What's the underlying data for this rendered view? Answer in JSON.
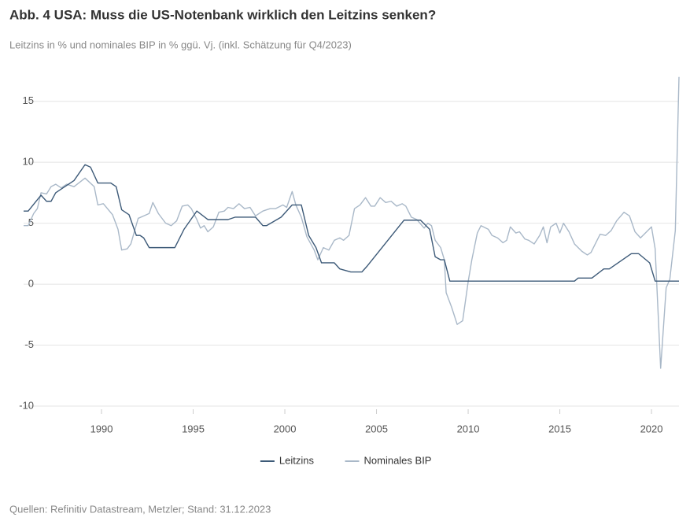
{
  "chart_data": {
    "type": "line",
    "title": "Abb. 4 USA: Muss die US-Notenbank wirklich den Leitzins senken?",
    "subtitle": "Leitzins in % und nominales BIP in % ggü. Vj. (inkl. Schätzung für Q4/2023)",
    "source": "Quellen: Refinitiv Datastream, Metzler; Stand: 31.12.2023",
    "xlim": [
      1985.75,
      2021.5
    ],
    "xticks": [
      1990,
      1995,
      2000,
      2005,
      2010,
      2015,
      2020
    ],
    "ylim": [
      -10,
      17.5
    ],
    "yticks": [
      -10,
      -5,
      0,
      5,
      10,
      15
    ],
    "grid": true,
    "legend": "bottom",
    "series": [
      {
        "name": "Leitzins",
        "color": "#3d5a78",
        "x": [
          1985.75,
          1986.0,
          1986.7,
          1987.0,
          1987.25,
          1987.5,
          1987.9,
          1988.5,
          1989.1,
          1989.4,
          1989.8,
          1990.5,
          1990.8,
          1991.1,
          1991.5,
          1991.9,
          1992.1,
          1992.3,
          1992.6,
          1994.0,
          1994.5,
          1995.2,
          1995.8,
          1996.9,
          1997.3,
          1998.4,
          1998.8,
          1999.0,
          1999.8,
          2000.4,
          2000.9,
          2001.3,
          2001.7,
          2002.0,
          2002.7,
          2003.0,
          2003.6,
          2004.2,
          2004.5,
          2006.5,
          2007.4,
          2007.9,
          2008.2,
          2008.5,
          2008.7,
          2009.0,
          2015.8,
          2016.0,
          2016.75,
          2017.4,
          2017.7,
          2018.9,
          2019.3,
          2019.9,
          2020.2,
          2021.5
        ],
        "values": [
          6.0,
          6.0,
          7.3,
          6.8,
          6.8,
          7.5,
          7.9,
          8.5,
          9.8,
          9.6,
          8.3,
          8.3,
          8.0,
          6.1,
          5.7,
          4.0,
          4.0,
          3.8,
          3.0,
          3.0,
          4.5,
          6.0,
          5.3,
          5.3,
          5.5,
          5.5,
          4.8,
          4.8,
          5.5,
          6.5,
          6.5,
          4.0,
          3.0,
          1.75,
          1.75,
          1.25,
          1.0,
          1.0,
          1.5,
          5.25,
          5.25,
          4.5,
          2.25,
          2.0,
          2.0,
          0.25,
          0.25,
          0.5,
          0.5,
          1.25,
          1.25,
          2.5,
          2.5,
          1.75,
          0.25,
          0.25
        ]
      },
      {
        "name": "Nominales BIP",
        "color": "#a9b8c8",
        "x": [
          1985.75,
          1986.0,
          1986.3,
          1986.5,
          1986.7,
          1987.0,
          1987.25,
          1987.5,
          1987.8,
          1988.1,
          1988.5,
          1989.1,
          1989.6,
          1989.8,
          1990.1,
          1990.6,
          1990.9,
          1991.1,
          1991.4,
          1991.6,
          1992.0,
          1992.3,
          1992.6,
          1992.8,
          1993.1,
          1993.5,
          1993.8,
          1994.1,
          1994.4,
          1994.7,
          1994.9,
          1995.2,
          1995.4,
          1995.6,
          1995.8,
          1996.1,
          1996.4,
          1996.7,
          1996.9,
          1997.2,
          1997.5,
          1997.8,
          1998.1,
          1998.4,
          1998.8,
          1999.2,
          1999.5,
          1999.9,
          2000.1,
          2000.4,
          2000.6,
          2000.9,
          2001.2,
          2001.6,
          2001.8,
          2002.1,
          2002.4,
          2002.7,
          2003.0,
          2003.2,
          2003.5,
          2003.8,
          2004.1,
          2004.4,
          2004.7,
          2004.9,
          2005.2,
          2005.5,
          2005.8,
          2006.1,
          2006.4,
          2006.6,
          2006.9,
          2007.2,
          2007.6,
          2007.8,
          2008.0,
          2008.2,
          2008.5,
          2008.7,
          2008.8,
          2009.1,
          2009.4,
          2009.7,
          2010.0,
          2010.2,
          2010.5,
          2010.7,
          2011.1,
          2011.3,
          2011.6,
          2011.9,
          2012.1,
          2012.3,
          2012.6,
          2012.8,
          2013.1,
          2013.3,
          2013.6,
          2013.9,
          2014.1,
          2014.3,
          2014.5,
          2014.8,
          2015.0,
          2015.2,
          2015.5,
          2015.8,
          2016.2,
          2016.5,
          2016.7,
          2017.0,
          2017.2,
          2017.5,
          2017.8,
          2018.1,
          2018.5,
          2018.8,
          2019.1,
          2019.4,
          2019.6,
          2020.0,
          2020.2,
          2020.5,
          2020.8,
          2021.0,
          2021.3,
          2021.5
        ],
        "values": [
          4.8,
          4.8,
          5.8,
          6.2,
          7.5,
          7.4,
          8.0,
          8.2,
          7.9,
          8.2,
          8.0,
          8.7,
          8.0,
          6.5,
          6.6,
          5.7,
          4.5,
          2.8,
          2.9,
          3.3,
          5.4,
          5.6,
          5.8,
          6.7,
          5.8,
          5.0,
          4.8,
          5.2,
          6.4,
          6.5,
          6.2,
          5.3,
          4.6,
          4.8,
          4.3,
          4.7,
          5.9,
          6.0,
          6.3,
          6.2,
          6.6,
          6.2,
          6.3,
          5.6,
          6.0,
          6.2,
          6.2,
          6.5,
          6.3,
          7.6,
          6.5,
          5.5,
          3.9,
          2.8,
          2.0,
          3.0,
          2.8,
          3.6,
          3.8,
          3.6,
          4.0,
          6.2,
          6.5,
          7.1,
          6.4,
          6.4,
          7.1,
          6.7,
          6.8,
          6.4,
          6.6,
          6.4,
          5.5,
          5.3,
          4.6,
          5.0,
          4.8,
          3.6,
          3.0,
          2.0,
          -0.7,
          -1.9,
          -3.3,
          -3.0,
          0.2,
          2.0,
          4.2,
          4.8,
          4.5,
          4.0,
          3.8,
          3.4,
          3.6,
          4.7,
          4.2,
          4.3,
          3.7,
          3.6,
          3.3,
          4.0,
          4.7,
          3.4,
          4.7,
          5.0,
          4.2,
          5.0,
          4.3,
          3.3,
          2.7,
          2.4,
          2.6,
          3.5,
          4.1,
          4.0,
          4.4,
          5.2,
          5.9,
          5.6,
          4.3,
          3.8,
          4.1,
          4.7,
          2.9,
          -6.9,
          -0.3,
          0.4,
          4.4,
          17.0
        ]
      }
    ]
  }
}
